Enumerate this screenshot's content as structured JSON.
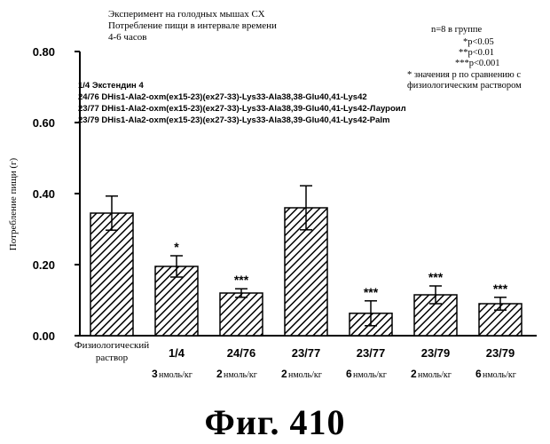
{
  "header": {
    "line1": "Эксперимент на голодных мышах СХ",
    "line2": "Потребление пищи в интервале времени",
    "line3": "4-6 часов"
  },
  "notes": {
    "n_per_group": "n=8 в группе",
    "sig1": "*p<0.05",
    "sig2": "**p<0.01",
    "sig3": "***p<0.001",
    "compare_line1": "* значения р по сравнению с",
    "compare_line2": "физиологическим раствором"
  },
  "legend": [
    "1/4 Экстендин 4",
    "24/76 DHis1-Ala2-oxm(ex15-23)(ex27-33)-Lys33-Ala38,38-Glu40,41-Lys42",
    "23/77 DHis1-Ala2-oxm(ex15-23)(ex27-33)-Lys33-Ala38,39-Glu40,41-Lys42-Лауроил",
    "23/79 DHis1-Ala2-oxm(ex15-23)(ex27-33)-Lys33-Ala38,39-Glu40,41-Lys42-Palm"
  ],
  "figure_caption": "Фиг.  410",
  "chart_data": {
    "type": "bar",
    "ylabel": "Потребление пищи (г)",
    "ylim": [
      0,
      0.8
    ],
    "yticks": [
      "0.00",
      "0.20",
      "0.40",
      "0.60",
      "0.80"
    ],
    "categories": [
      {
        "label": "Физиологический",
        "label2": "раствор",
        "dose": "",
        "dose_unit": ""
      },
      {
        "label": "1/4",
        "label2": "",
        "dose": "3",
        "dose_unit": "нмоль/кг"
      },
      {
        "label": "24/76",
        "label2": "",
        "dose": "2",
        "dose_unit": "нмоль/кг"
      },
      {
        "label": "23/77",
        "label2": "",
        "dose": "2",
        "dose_unit": "нмоль/кг"
      },
      {
        "label": "23/77",
        "label2": "",
        "dose": "6",
        "dose_unit": "нмоль/кг"
      },
      {
        "label": "23/79",
        "label2": "",
        "dose": "2",
        "dose_unit": "нмоль/кг"
      },
      {
        "label": "23/79",
        "label2": "",
        "dose": "6",
        "dose_unit": "нмоль/кг"
      }
    ],
    "values": [
      0.345,
      0.195,
      0.12,
      0.36,
      0.063,
      0.115,
      0.09
    ],
    "errors": [
      0.048,
      0.03,
      0.012,
      0.062,
      0.035,
      0.025,
      0.018
    ],
    "significance": [
      "",
      "*",
      "***",
      "",
      "***",
      "***",
      "***"
    ],
    "grid": false,
    "pattern": "diagonal-hatch"
  }
}
